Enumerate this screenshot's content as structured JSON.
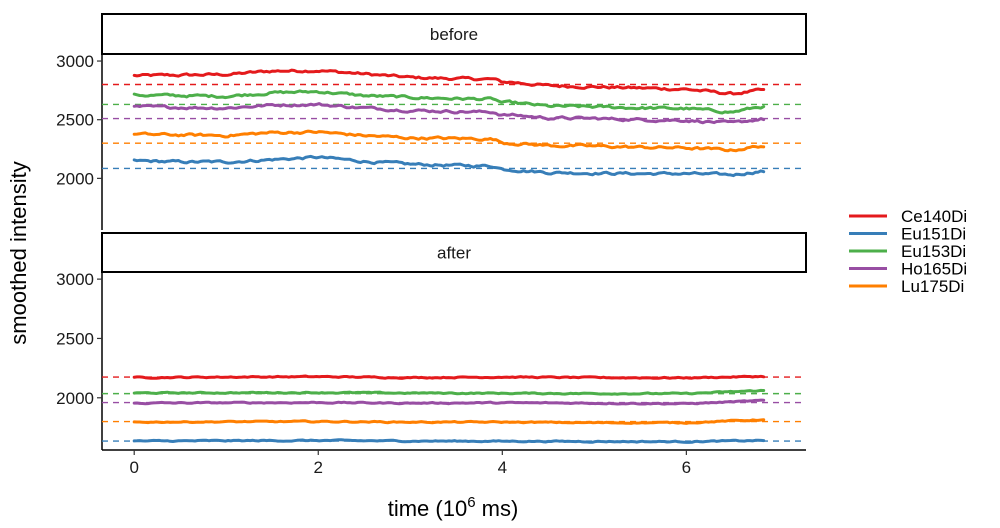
{
  "chart_data": {
    "type": "line",
    "title": "",
    "xlabel_main": "time (10",
    "xlabel_sup": "6",
    "xlabel_tail": " ms)",
    "ylabel": "smoothed intensity",
    "xlim": [
      -0.35,
      7.3
    ],
    "ylim": [
      1560,
      3060
    ],
    "x_ticks": [
      0,
      2,
      4,
      6
    ],
    "x_tick_labels": [
      "0",
      "2",
      "4",
      "6"
    ],
    "y_ticks": [
      2000,
      2500,
      3000
    ],
    "y_tick_labels": [
      "2000",
      "2500",
      "3000"
    ],
    "legend_position": "right",
    "panels": [
      {
        "label": "before",
        "series": [
          {
            "name": "Ce140Di",
            "color": "#e41a1c",
            "reference": 2800,
            "x": [
              0,
              0.5,
              1.0,
              1.5,
              2.0,
              2.5,
              3.0,
              3.5,
              3.9,
              4.0,
              4.1,
              4.5,
              5.0,
              5.5,
              6.0,
              6.5,
              6.8
            ],
            "values": [
              2875,
              2880,
              2885,
              2915,
              2920,
              2890,
              2860,
              2850,
              2845,
              2820,
              2820,
              2790,
              2780,
              2770,
              2760,
              2720,
              2750
            ]
          },
          {
            "name": "Eu151Di",
            "color": "#377eb8",
            "reference": 2085,
            "x": [
              0,
              0.5,
              1.0,
              1.5,
              2.0,
              2.5,
              3.0,
              3.5,
              3.9,
              4.0,
              4.1,
              4.5,
              5.0,
              5.5,
              6.0,
              6.5,
              6.8
            ],
            "values": [
              2150,
              2140,
              2140,
              2160,
              2180,
              2145,
              2120,
              2110,
              2105,
              2080,
              2075,
              2050,
              2045,
              2040,
              2040,
              2030,
              2060
            ]
          },
          {
            "name": "Eu153Di",
            "color": "#4daf4a",
            "reference": 2630,
            "x": [
              0,
              0.5,
              1.0,
              1.5,
              2.0,
              2.5,
              3.0,
              3.5,
              3.9,
              4.0,
              4.1,
              4.5,
              5.0,
              5.5,
              6.0,
              6.5,
              6.8
            ],
            "values": [
              2710,
              2705,
              2700,
              2730,
              2740,
              2705,
              2690,
              2680,
              2675,
              2645,
              2645,
              2615,
              2610,
              2600,
              2595,
              2565,
              2610
            ]
          },
          {
            "name": "Ho165Di",
            "color": "#984ea3",
            "reference": 2510,
            "x": [
              0,
              0.5,
              1.0,
              1.5,
              2.0,
              2.5,
              3.0,
              3.5,
              3.9,
              4.0,
              4.1,
              4.5,
              5.0,
              5.5,
              6.0,
              6.5,
              6.8
            ],
            "values": [
              2610,
              2605,
              2600,
              2625,
              2630,
              2600,
              2580,
              2570,
              2565,
              2540,
              2540,
              2515,
              2510,
              2500,
              2495,
              2470,
              2505
            ]
          },
          {
            "name": "Lu175Di",
            "color": "#ff7f00",
            "reference": 2300,
            "x": [
              0,
              0.5,
              1.0,
              1.5,
              2.0,
              2.5,
              3.0,
              3.5,
              3.9,
              4.0,
              4.1,
              4.5,
              5.0,
              5.5,
              6.0,
              6.5,
              6.8
            ],
            "values": [
              2375,
              2370,
              2365,
              2390,
              2395,
              2365,
              2345,
              2340,
              2335,
              2305,
              2300,
              2280,
              2275,
              2265,
              2260,
              2240,
              2275
            ]
          }
        ]
      },
      {
        "label": "after",
        "series": [
          {
            "name": "Ce140Di",
            "color": "#e41a1c",
            "reference": 2175,
            "x": [
              0,
              1.0,
              2.0,
              3.0,
              4.0,
              5.0,
              6.0,
              6.8
            ],
            "values": [
              2170,
              2175,
              2178,
              2170,
              2175,
              2170,
              2168,
              2180
            ]
          },
          {
            "name": "Eu151Di",
            "color": "#377eb8",
            "reference": 1635,
            "x": [
              0,
              1.0,
              2.0,
              3.0,
              4.0,
              5.0,
              6.0,
              6.8
            ],
            "values": [
              1635,
              1638,
              1640,
              1636,
              1634,
              1632,
              1630,
              1640
            ]
          },
          {
            "name": "Eu153Di",
            "color": "#4daf4a",
            "reference": 2035,
            "x": [
              0,
              1.0,
              2.0,
              3.0,
              4.0,
              5.0,
              6.0,
              6.8
            ],
            "values": [
              2040,
              2042,
              2044,
              2040,
              2038,
              2036,
              2035,
              2060
            ]
          },
          {
            "name": "Ho165Di",
            "color": "#984ea3",
            "reference": 1960,
            "x": [
              0,
              1.0,
              2.0,
              3.0,
              4.0,
              5.0,
              6.0,
              6.8
            ],
            "values": [
              1955,
              1958,
              1960,
              1955,
              1958,
              1955,
              1950,
              1975
            ]
          },
          {
            "name": "Lu175Di",
            "color": "#ff7f00",
            "reference": 1800,
            "x": [
              0,
              1.0,
              2.0,
              3.0,
              4.0,
              5.0,
              6.0,
              6.8
            ],
            "values": [
              1795,
              1798,
              1800,
              1795,
              1795,
              1790,
              1790,
              1815
            ]
          }
        ]
      }
    ],
    "legend": [
      {
        "name": "Ce140Di",
        "color": "#e41a1c"
      },
      {
        "name": "Eu151Di",
        "color": "#377eb8"
      },
      {
        "name": "Eu153Di",
        "color": "#4daf4a"
      },
      {
        "name": "Ho165Di",
        "color": "#984ea3"
      },
      {
        "name": "Lu175Di",
        "color": "#ff7f00"
      }
    ]
  }
}
